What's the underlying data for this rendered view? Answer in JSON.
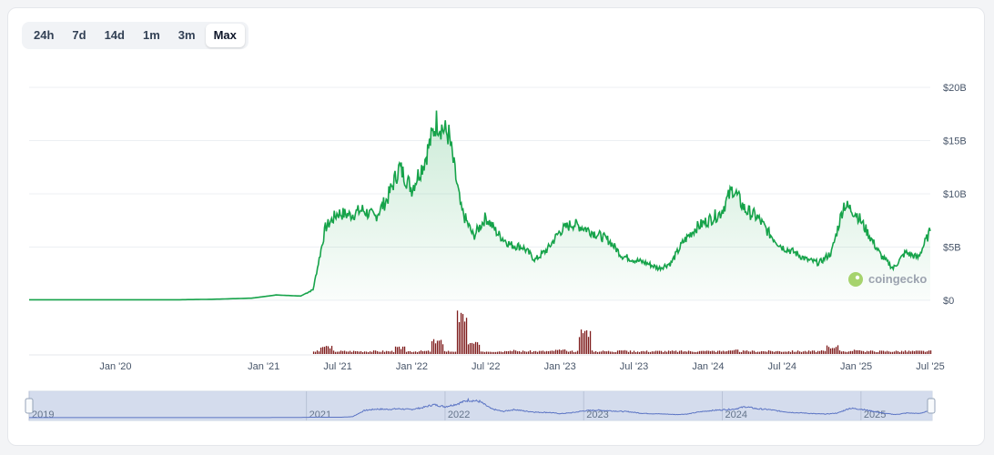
{
  "range_tabs": [
    "24h",
    "7d",
    "14d",
    "1m",
    "3m",
    "Max"
  ],
  "active_range": "Max",
  "watermark": {
    "text": "coingecko",
    "icon": "gecko-logo-icon"
  },
  "colors": {
    "line": "#16a34a",
    "volume": "#7f1d1d",
    "navigator_fill": "#cfd8ec",
    "navigator_line": "#5b74c4"
  },
  "chart_data": {
    "type": "line",
    "title": "",
    "xlabel": "",
    "ylabel": "",
    "y_ticks": [
      "$20B",
      "$15B",
      "$10B",
      "$5B",
      "$0"
    ],
    "ylim": [
      0,
      20
    ],
    "y_unit": "B USD",
    "x_ticks": [
      "Jan '20",
      "Jan '21",
      "Jul '21",
      "Jan '22",
      "Jul '22",
      "Jan '23",
      "Jul '23",
      "Jan '24",
      "Jul '24",
      "Jan '25",
      "Jul '25"
    ],
    "x_range": [
      "2019-06",
      "2025-07"
    ],
    "navigator_years": [
      "2019",
      "2021",
      "2022",
      "2023",
      "2024",
      "2025"
    ],
    "series": [
      {
        "x": [
          "2019-06",
          "2019-09",
          "2019-12",
          "2020-03",
          "2020-06",
          "2020-09",
          "2020-12",
          "2021-02",
          "2021-04",
          "2021-05",
          "2021-06",
          "2021-07",
          "2021-08",
          "2021-09",
          "2021-10",
          "2021-11",
          "2021-12",
          "2022-01",
          "2022-02",
          "2022-03",
          "2022-04",
          "2022-05",
          "2022-06",
          "2022-07",
          "2022-08",
          "2022-09",
          "2022-10",
          "2022-11",
          "2022-12",
          "2023-01",
          "2023-02",
          "2023-03",
          "2023-04",
          "2023-05",
          "2023-06",
          "2023-07",
          "2023-08",
          "2023-09",
          "2023-10",
          "2023-11",
          "2023-12",
          "2024-01",
          "2024-02",
          "2024-03",
          "2024-04",
          "2024-05",
          "2024-06",
          "2024-07",
          "2024-08",
          "2024-09",
          "2024-10",
          "2024-11",
          "2024-12",
          "2025-01",
          "2025-02",
          "2025-03",
          "2025-04",
          "2025-05",
          "2025-06",
          "2025-07"
        ],
        "values": [
          0.05,
          0.05,
          0.05,
          0.05,
          0.05,
          0.1,
          0.2,
          0.5,
          0.4,
          1.0,
          6.8,
          8.2,
          8.0,
          8.5,
          7.8,
          9.5,
          12.5,
          10.5,
          13.0,
          16.8,
          15.5,
          8.5,
          6.0,
          7.8,
          6.2,
          5.2,
          5.0,
          3.8,
          4.8,
          6.5,
          7.2,
          6.8,
          6.2,
          5.6,
          4.2,
          3.8,
          3.5,
          3.0,
          3.5,
          5.5,
          6.8,
          7.5,
          8.2,
          10.5,
          8.5,
          7.8,
          6.2,
          5.0,
          4.5,
          3.8,
          3.5,
          4.5,
          9.0,
          8.2,
          6.2,
          4.2,
          3.0,
          4.5,
          4.0,
          6.5
        ]
      }
    ],
    "volume_series": {
      "note": "volume bars, relative scale",
      "x": [
        "2021-06",
        "2021-12",
        "2022-03",
        "2022-05",
        "2022-06",
        "2022-09",
        "2023-01",
        "2023-03",
        "2023-06",
        "2024-01",
        "2024-03",
        "2024-11",
        "2025-01"
      ],
      "values": [
        0.6,
        0.5,
        1.0,
        3.0,
        0.8,
        0.3,
        0.3,
        1.8,
        0.3,
        0.2,
        0.3,
        0.6,
        0.3
      ]
    }
  }
}
